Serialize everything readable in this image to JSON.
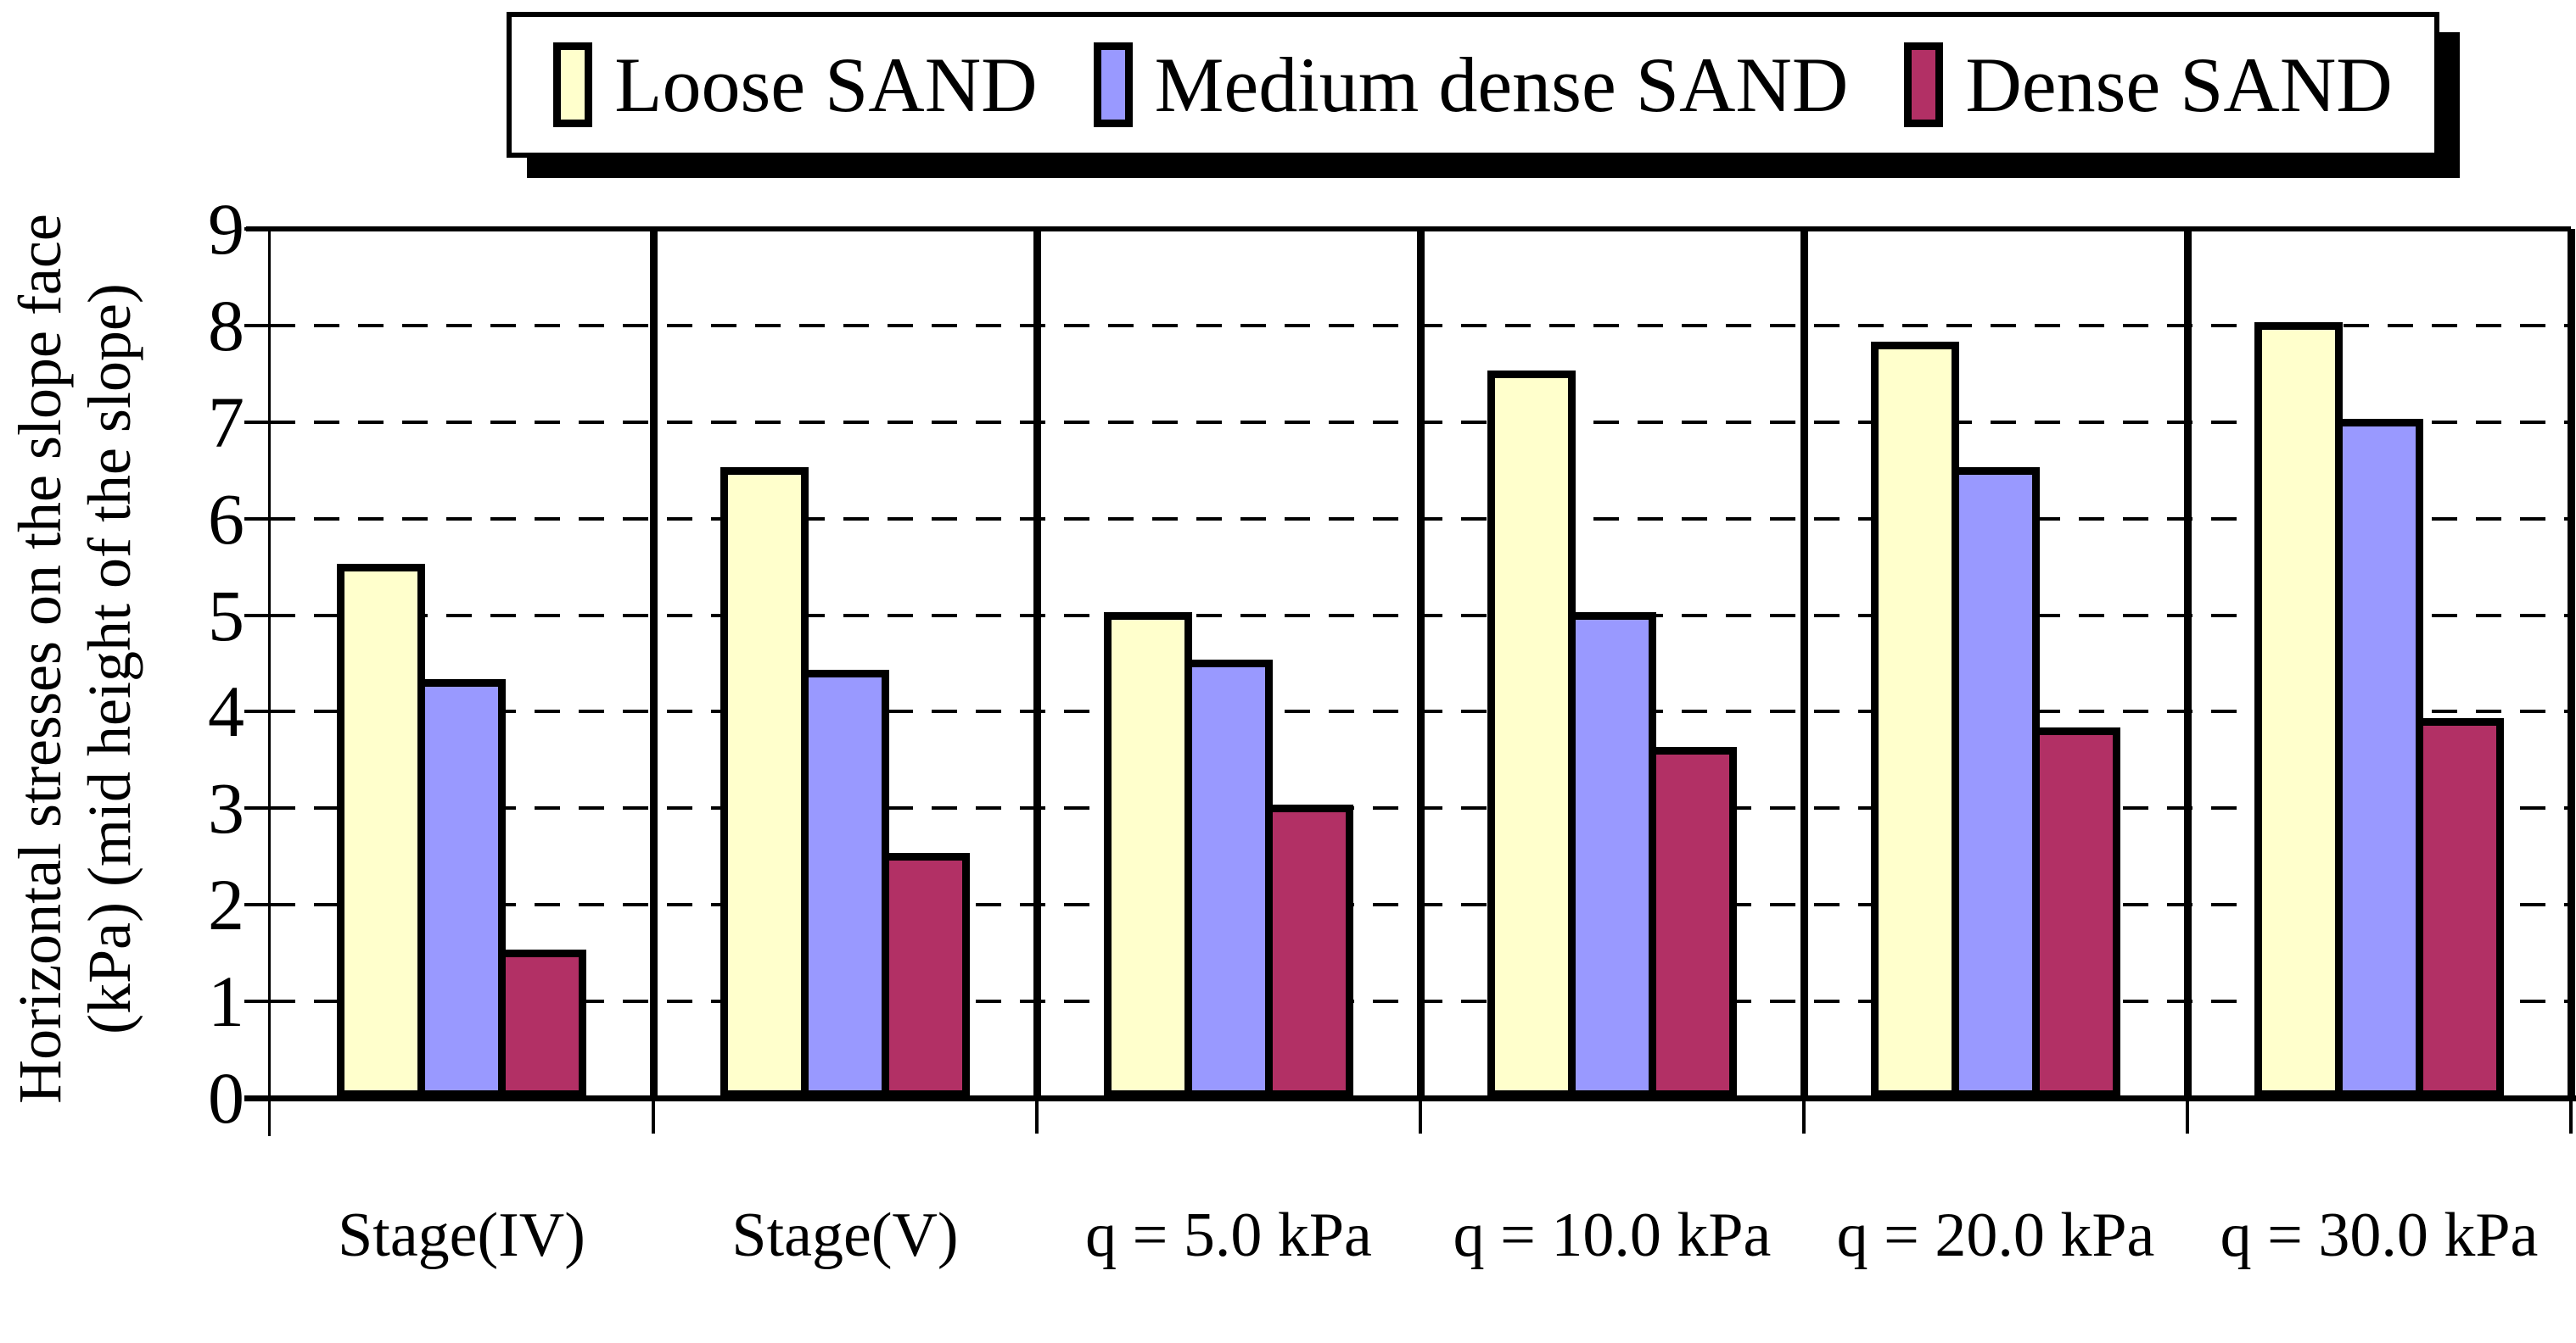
{
  "legend": {
    "items": [
      {
        "label": "Loose SAND",
        "color": "#FFFFCC"
      },
      {
        "label": "Medium dense SAND",
        "color": "#9999FF"
      },
      {
        "label": "Dense SAND",
        "color": "#B23065"
      }
    ]
  },
  "y_axis": {
    "title_line1": "Horizontal stresses on the slope face",
    "title_line2": "(kPa) (mid height of the slope)"
  },
  "chart_data": {
    "type": "bar",
    "title": "",
    "categories": [
      "Stage(IV)",
      "Stage(V)",
      "q = 5.0 kPa",
      "q = 10.0 kPa",
      "q = 20.0 kPa",
      "q = 30.0 kPa"
    ],
    "series": [
      {
        "name": "Loose SAND",
        "color": "#FFFFCC",
        "values": [
          5.5,
          6.5,
          5.0,
          7.5,
          7.8,
          8.0
        ]
      },
      {
        "name": "Medium dense SAND",
        "color": "#9999FF",
        "values": [
          4.3,
          4.4,
          4.5,
          5.0,
          6.5,
          7.0
        ]
      },
      {
        "name": "Dense SAND",
        "color": "#B23065",
        "values": [
          1.5,
          2.5,
          3.0,
          3.6,
          3.8,
          3.9
        ]
      }
    ],
    "xlabel": "",
    "ylabel": "Horizontal stresses on the slope face (kPa) (mid height of the slope)",
    "ylim": [
      0,
      9
    ],
    "ytick_step": 1,
    "grid": "horizontal-dashed",
    "legend_position": "top",
    "panel_dividers": true
  }
}
